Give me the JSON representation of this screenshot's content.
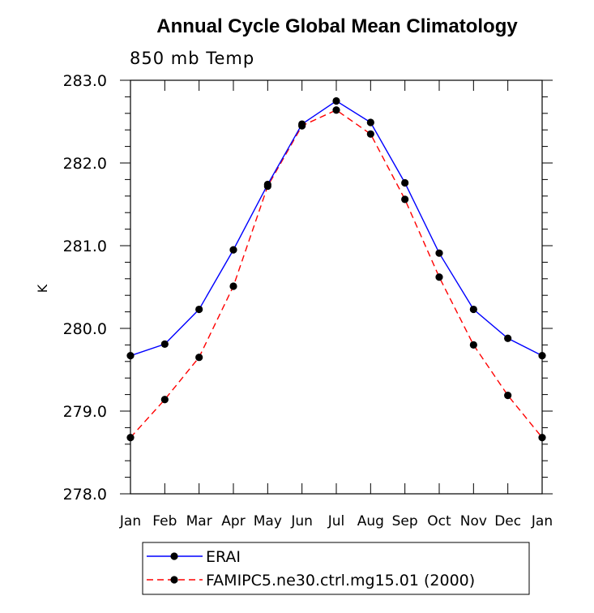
{
  "chart_data": {
    "type": "line",
    "title": "Annual Cycle Global Mean Climatology",
    "subtitle": "850 mb Temp",
    "xlabel": "",
    "ylabel": "K",
    "categories": [
      "Jan",
      "Feb",
      "Mar",
      "Apr",
      "May",
      "Jun",
      "Jul",
      "Aug",
      "Sep",
      "Oct",
      "Nov",
      "Dec",
      "Jan"
    ],
    "ylim": [
      278.0,
      283.0
    ],
    "yticks": [
      "278.0",
      "279.0",
      "280.0",
      "281.0",
      "282.0",
      "283.0"
    ],
    "grid": false,
    "legend_placement": "bottom",
    "series": [
      {
        "name": "ERAI",
        "color": "#0000ff",
        "line_style": "solid",
        "values": [
          279.67,
          279.81,
          280.23,
          280.95,
          281.74,
          282.47,
          282.75,
          282.49,
          281.76,
          280.91,
          280.23,
          279.88,
          279.67
        ]
      },
      {
        "name": "FAMIPC5.ne30.ctrl.mg15.01 (2000)",
        "color": "#ff0000",
        "line_style": "dashed",
        "values": [
          278.68,
          279.14,
          279.65,
          280.51,
          281.72,
          282.45,
          282.64,
          282.35,
          281.56,
          280.62,
          279.8,
          279.19,
          278.68
        ]
      }
    ],
    "marker": "filled-circle",
    "marker_color": "#000000"
  }
}
